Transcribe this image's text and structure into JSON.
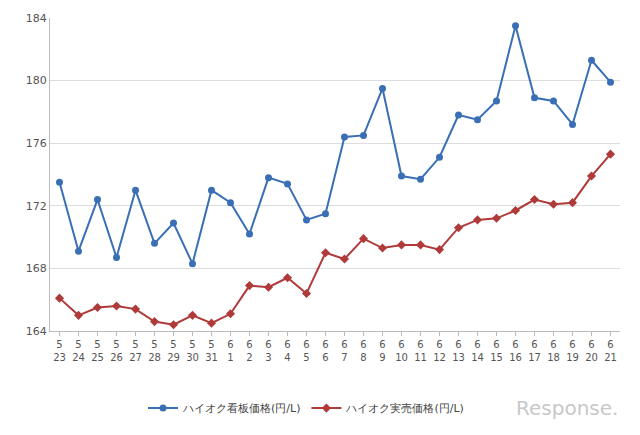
{
  "chart_data": {
    "type": "line",
    "categories": [
      "5\n23",
      "5\n24",
      "5\n25",
      "5\n26",
      "5\n27",
      "5\n28",
      "5\n29",
      "5\n30",
      "5\n31",
      "6\n1",
      "6\n2",
      "6\n3",
      "6\n4",
      "6\n5",
      "6\n6",
      "6\n7",
      "6\n8",
      "6\n9",
      "6\n10",
      "6\n11",
      "6\n12",
      "6\n13",
      "6\n14",
      "6\n15",
      "6\n16",
      "6\n17",
      "6\n18",
      "6\n19",
      "6\n20",
      "6\n21"
    ],
    "series": [
      {
        "name": "ハイオク看板価格(円/L)",
        "color": "#3a6fb5",
        "marker": "circle",
        "values": [
          173.5,
          169.1,
          172.4,
          168.7,
          173.0,
          169.6,
          170.9,
          168.3,
          173.0,
          172.2,
          170.2,
          173.8,
          173.4,
          171.1,
          171.5,
          176.4,
          176.5,
          179.5,
          173.9,
          173.7,
          175.1,
          177.8,
          177.5,
          178.7,
          183.5,
          178.9,
          178.7,
          177.2,
          181.3,
          179.9
        ]
      },
      {
        "name": "ハイオク実売価格(円/L)",
        "color": "#b03a3a",
        "marker": "diamond",
        "values": [
          166.1,
          165.0,
          165.5,
          165.6,
          165.4,
          164.6,
          164.4,
          165.0,
          164.5,
          165.1,
          166.9,
          166.8,
          167.4,
          166.4,
          169.0,
          168.6,
          169.9,
          169.3,
          169.5,
          169.5,
          169.2,
          170.6,
          171.1,
          171.2,
          171.7,
          172.4,
          172.1,
          172.2,
          173.9,
          175.3
        ]
      }
    ],
    "ylim": [
      164,
      184
    ],
    "yticks": [
      164,
      168,
      172,
      176,
      180,
      184
    ],
    "grid": true,
    "legend": "bottom",
    "annotations": [
      {
        "text": "Response."
      }
    ]
  }
}
